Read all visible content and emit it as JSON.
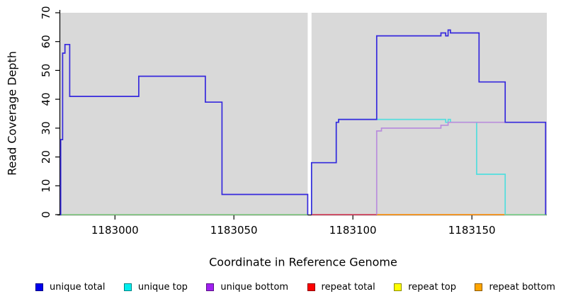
{
  "legend": {
    "items": [
      {
        "id": "unique-total",
        "label": "unique total",
        "color": "#0000ee"
      },
      {
        "id": "unique-top",
        "label": "unique top",
        "color": "#00eeee"
      },
      {
        "id": "unique-bottom",
        "label": "unique bottom",
        "color": "#a020f0"
      },
      {
        "id": "repeat-total",
        "label": "repeat total",
        "color": "#ff0000"
      },
      {
        "id": "repeat-top",
        "label": "repeat top",
        "color": "#ffff00"
      },
      {
        "id": "repeat-bottom",
        "label": "repeat bottom",
        "color": "#ffa500"
      }
    ]
  },
  "chart_data": {
    "type": "line",
    "step": true,
    "title": "",
    "xlabel": "Coordinate in Reference Genome",
    "ylabel": "Read Coverage Depth",
    "xlim": [
      1182977,
      1183181.5
    ],
    "ylim": [
      0,
      70
    ],
    "grid": false,
    "panel_bg": "#d9d9d9",
    "axis_color": "#000000",
    "gap_band": {
      "x0": 1183081,
      "x1": 1183082.6,
      "color": "#ffffff"
    },
    "xticks": [
      {
        "value": 1183000,
        "label": "1183000"
      },
      {
        "value": 1183050,
        "label": "1183050"
      },
      {
        "value": 1183100,
        "label": "1183100"
      },
      {
        "value": 1183150,
        "label": "1183150"
      }
    ],
    "yticks": [
      {
        "value": 0,
        "label": "0"
      },
      {
        "value": 10,
        "label": "10"
      },
      {
        "value": 20,
        "label": "20"
      },
      {
        "value": 30,
        "label": "30"
      },
      {
        "value": 40,
        "label": "40"
      },
      {
        "value": 50,
        "label": "50"
      },
      {
        "value": 60,
        "label": "60"
      },
      {
        "value": 70,
        "label": "70"
      }
    ],
    "series": [
      {
        "id": "repeat-total",
        "name": "repeat total",
        "color": "#d94b66",
        "in_legend": true,
        "segments": [
          [
            [
              1183082.6,
              0
            ],
            [
              1183110,
              0
            ]
          ]
        ]
      },
      {
        "id": "repeat-bottom",
        "name": "repeat bottom",
        "color": "#ff9a1f",
        "in_legend": true,
        "segments": [
          [
            [
              1183110,
              0
            ],
            [
              1183164,
              0
            ]
          ]
        ]
      },
      {
        "id": "repeat-top",
        "name": "repeat top",
        "color": "#ffff00",
        "in_legend": true,
        "segments": []
      },
      {
        "id": "unique-top",
        "name": "unique top",
        "color": "#52dede",
        "in_legend": true,
        "segments": [
          [
            [
              1183082.6,
              0
            ],
            [
              1183082.6,
              18
            ],
            [
              1183093,
              32
            ],
            [
              1183094,
              33
            ],
            [
              1183139,
              32
            ],
            [
              1183140,
              33
            ],
            [
              1183141,
              32
            ],
            [
              1183152,
              14
            ],
            [
              1183164,
              0
            ],
            [
              1183181,
              0
            ]
          ]
        ]
      },
      {
        "id": "unique-bottom",
        "name": "unique bottom",
        "color": "#b98ddc",
        "in_legend": true,
        "segments": [
          [
            [
              1183110,
              0
            ],
            [
              1183110,
              29
            ],
            [
              1183112,
              30
            ],
            [
              1183137,
              31
            ],
            [
              1183140,
              32
            ],
            [
              1183181,
              0
            ]
          ]
        ]
      },
      {
        "id": "baseline",
        "name": "baseline",
        "color": "#8ccf8c",
        "in_legend": false,
        "segments": [
          [
            [
              1182977,
              0
            ],
            [
              1183081,
              0
            ]
          ],
          [
            [
              1183164,
              0
            ],
            [
              1183181.5,
              0
            ]
          ]
        ]
      },
      {
        "id": "unique-total",
        "name": "unique total",
        "color": "#3629dd",
        "in_legend": true,
        "segments": [
          [
            [
              1182977,
              0
            ],
            [
              1182977.2,
              26
            ],
            [
              1182978,
              56
            ],
            [
              1182979,
              59
            ],
            [
              1182981,
              41
            ],
            [
              1183010,
              48
            ],
            [
              1183038,
              39
            ],
            [
              1183045,
              7
            ],
            [
              1183081,
              0
            ]
          ],
          [
            [
              1183082.6,
              0
            ],
            [
              1183082.6,
              18
            ],
            [
              1183093,
              32
            ],
            [
              1183094,
              33
            ],
            [
              1183110,
              62
            ],
            [
              1183137,
              63
            ],
            [
              1183139,
              62
            ],
            [
              1183140,
              64
            ],
            [
              1183141,
              63
            ],
            [
              1183153,
              46
            ],
            [
              1183164,
              32
            ],
            [
              1183181,
              0
            ]
          ]
        ]
      }
    ]
  }
}
